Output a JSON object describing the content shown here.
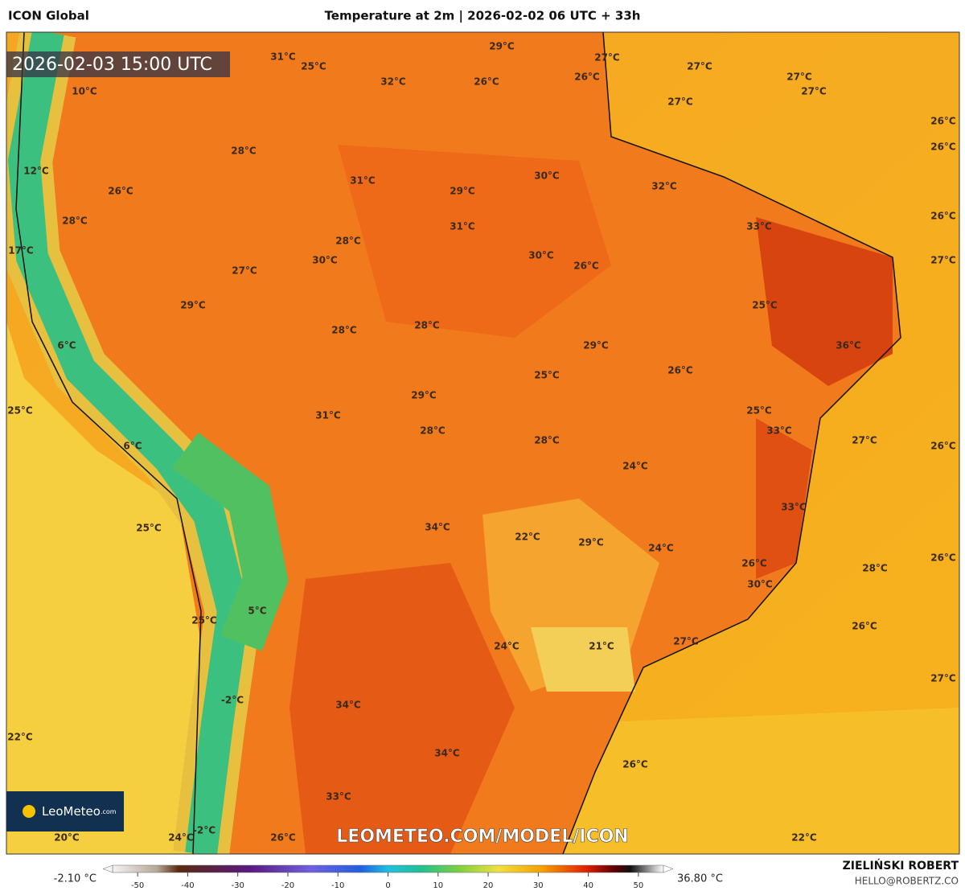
{
  "header": {
    "model": "ICON Global",
    "title": "Temperature at 2m | 2026-02-02 06 UTC + 33h"
  },
  "map": {
    "valid_time": "2026-02-03 15:00 UTC",
    "watermark": "LEOMETEO.COM/MODEL/ICON",
    "logo": "LeoMeteo",
    "logo_suffix": ".com",
    "temperature_labels": [
      "31°C",
      "25°C",
      "32°C",
      "29°C",
      "26°C",
      "27°C",
      "26°C",
      "27°C",
      "27°C",
      "27°C",
      "27°C",
      "10°C",
      "26°C",
      "26°C",
      "28°C",
      "12°C",
      "31°C",
      "30°C",
      "32°C",
      "26°C",
      "29°C",
      "28°C",
      "26°C",
      "31°C",
      "33°C",
      "28°C",
      "17°C",
      "27°C",
      "30°C",
      "30°C",
      "26°C",
      "27°C",
      "29°C",
      "25°C",
      "28°C",
      "28°C",
      "6°C",
      "29°C",
      "36°C",
      "26°C",
      "25°C",
      "25°C",
      "29°C",
      "31°C",
      "25°C",
      "33°C",
      "28°C",
      "28°C",
      "27°C",
      "6°C",
      "26°C",
      "24°C",
      "33°C",
      "25°C",
      "34°C",
      "22°C",
      "29°C",
      "24°C",
      "26°C",
      "26°C",
      "28°C",
      "30°C",
      "5°C",
      "25°C",
      "26°C",
      "27°C",
      "24°C",
      "21°C",
      "27°C",
      "-2°C",
      "34°C",
      "22°C",
      "34°C",
      "26°C",
      "33°C",
      "20°C",
      "24°C",
      "26°C",
      "22°C",
      "-2°C"
    ]
  },
  "colorbar": {
    "min_label": "-2.10 °C",
    "max_label": "36.80 °C",
    "ticks": [
      -50,
      -40,
      -30,
      -20,
      -10,
      0,
      10,
      20,
      30,
      40,
      50
    ]
  },
  "footer": {
    "author": "ZIELIŃSKI ROBERT",
    "email": "HELLO@ROBERTZ.CO"
  }
}
